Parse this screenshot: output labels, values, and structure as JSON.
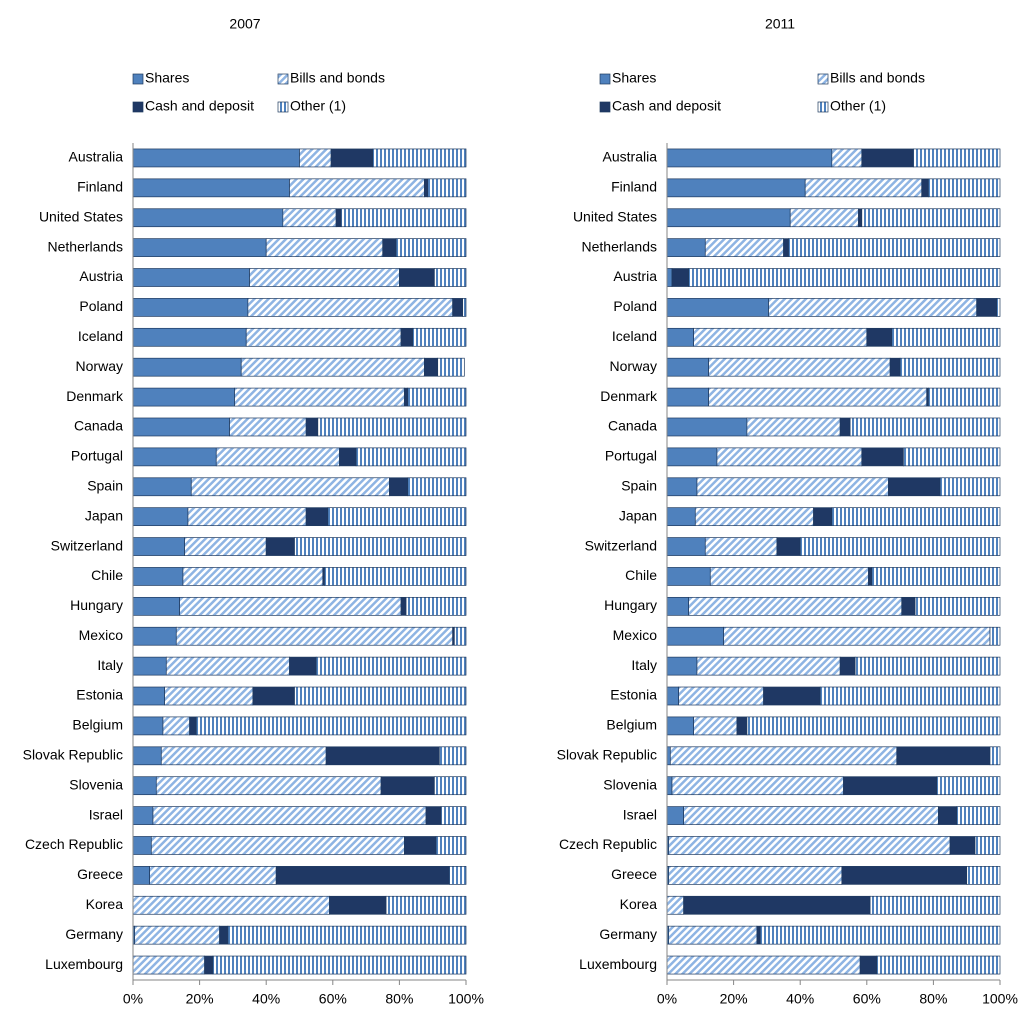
{
  "chart_data": [
    {
      "type": "stacked-bar-100",
      "title": "2007",
      "categories": [
        "Australia",
        "Finland",
        "United States",
        "Netherlands",
        "Austria",
        "Poland",
        "Iceland",
        "Norway",
        "Denmark",
        "Canada",
        "Portugal",
        "Spain",
        "Japan",
        "Switzerland",
        "Chile",
        "Hungary",
        "Mexico",
        "Italy",
        "Estonia",
        "Belgium",
        "Slovak Republic",
        "Slovenia",
        "Israel",
        "Czech Republic",
        "Greece",
        "Korea",
        "Germany",
        "Luxembourg"
      ],
      "series": [
        {
          "name": "Shares",
          "color": "#4f81bd",
          "pattern": "solid",
          "values": [
            50,
            47,
            45,
            40,
            35,
            34.5,
            34,
            32.5,
            30.5,
            29,
            25,
            17.5,
            16.5,
            15.5,
            15,
            14,
            13,
            10,
            9.5,
            9,
            8.5,
            7,
            6,
            5.5,
            5,
            0,
            0.5,
            0
          ]
        },
        {
          "name": "Bills and bonds",
          "color": "#4f81bd",
          "pattern": "diagonal",
          "values": [
            9.5,
            40.5,
            16,
            35,
            45,
            61.5,
            46.5,
            55,
            51,
            23,
            37,
            59.5,
            35.5,
            24.5,
            42,
            66.5,
            83,
            37,
            26.5,
            8,
            49.5,
            67.5,
            82,
            76,
            38,
            59,
            25.5,
            21.5
          ]
        },
        {
          "name": "Cash and deposit",
          "color": "#1f3864",
          "pattern": "solid",
          "values": [
            12.5,
            1,
            1.5,
            4,
            10.5,
            3,
            3.5,
            4,
            1,
            3.5,
            5,
            5.5,
            6.5,
            8.5,
            0.5,
            1.5,
            0.5,
            8,
            12.5,
            2,
            34,
            16,
            4.5,
            9.5,
            52,
            17,
            2.5,
            2.5
          ]
        },
        {
          "name": "Other (1)",
          "color": "#4f81bd",
          "pattern": "vertical",
          "values": [
            28,
            11.5,
            37.5,
            21,
            9.5,
            1,
            16,
            8,
            17.5,
            44.5,
            33,
            17.5,
            41.5,
            51.5,
            42.5,
            18,
            3.5,
            45,
            51.5,
            81,
            8,
            9.5,
            7.5,
            9,
            5,
            24,
            71.5,
            76
          ]
        }
      ],
      "xlim": [
        0,
        100
      ],
      "xticks": [
        {
          "value": 0,
          "label": "0%"
        },
        {
          "value": 20,
          "label": "20%"
        },
        {
          "value": 40,
          "label": "40%"
        },
        {
          "value": 60,
          "label": "60%"
        },
        {
          "value": 80,
          "label": "80%"
        },
        {
          "value": 100,
          "label": "100%"
        }
      ],
      "grid": false
    },
    {
      "type": "stacked-bar-100",
      "title": "2011",
      "categories": [
        "Australia",
        "Finland",
        "United States",
        "Netherlands",
        "Austria",
        "Poland",
        "Iceland",
        "Norway",
        "Denmark",
        "Canada",
        "Portugal",
        "Spain",
        "Japan",
        "Switzerland",
        "Chile",
        "Hungary",
        "Mexico",
        "Italy",
        "Estonia",
        "Belgium",
        "Slovak Republic",
        "Slovenia",
        "Israel",
        "Czech Republic",
        "Greece",
        "Korea",
        "Germany",
        "Luxembourg"
      ],
      "series": [
        {
          "name": "Shares",
          "color": "#4f81bd",
          "pattern": "solid",
          "values": [
            49.5,
            41.5,
            37,
            11.5,
            1.5,
            30.5,
            8,
            12.5,
            12.5,
            24,
            15,
            9,
            8.5,
            11.5,
            13,
            6.5,
            17,
            9,
            3.5,
            8,
            1,
            1.5,
            5,
            0.5,
            0.5,
            0,
            0.5,
            0
          ]
        },
        {
          "name": "Bills and bonds",
          "color": "#4f81bd",
          "pattern": "diagonal",
          "values": [
            9,
            35,
            20.5,
            23.5,
            0,
            62.5,
            52,
            54.5,
            65.5,
            28,
            43.5,
            57.5,
            35.5,
            21.5,
            47.5,
            64,
            80,
            43,
            25.5,
            13,
            68,
            51.5,
            76.5,
            84.5,
            52,
            5,
            26.5,
            58
          ]
        },
        {
          "name": "Cash and deposit",
          "color": "#1f3864",
          "pattern": "solid",
          "values": [
            15.5,
            2,
            1,
            1.5,
            5,
            6,
            7.5,
            3,
            0.5,
            3,
            12.5,
            15.5,
            5.5,
            7,
            1,
            4,
            0,
            4.5,
            17,
            3,
            28,
            28,
            5.5,
            7.5,
            37.5,
            56,
            1,
            5
          ]
        },
        {
          "name": "Other (1)",
          "color": "#4f81bd",
          "pattern": "vertical",
          "values": [
            26,
            21.5,
            41.5,
            63.5,
            93.5,
            1,
            32.5,
            30,
            21.5,
            45,
            29,
            18,
            50.5,
            60,
            38.5,
            25.5,
            3,
            43.5,
            54,
            76,
            3,
            19,
            13,
            7.5,
            10,
            39,
            72,
            37
          ]
        }
      ],
      "xlim": [
        0,
        100
      ],
      "xticks": [
        {
          "value": 0,
          "label": "0%"
        },
        {
          "value": 20,
          "label": "20%"
        },
        {
          "value": 40,
          "label": "40%"
        },
        {
          "value": 60,
          "label": "60%"
        },
        {
          "value": 80,
          "label": "80%"
        },
        {
          "value": 100,
          "label": "100%"
        }
      ],
      "grid": false
    }
  ]
}
